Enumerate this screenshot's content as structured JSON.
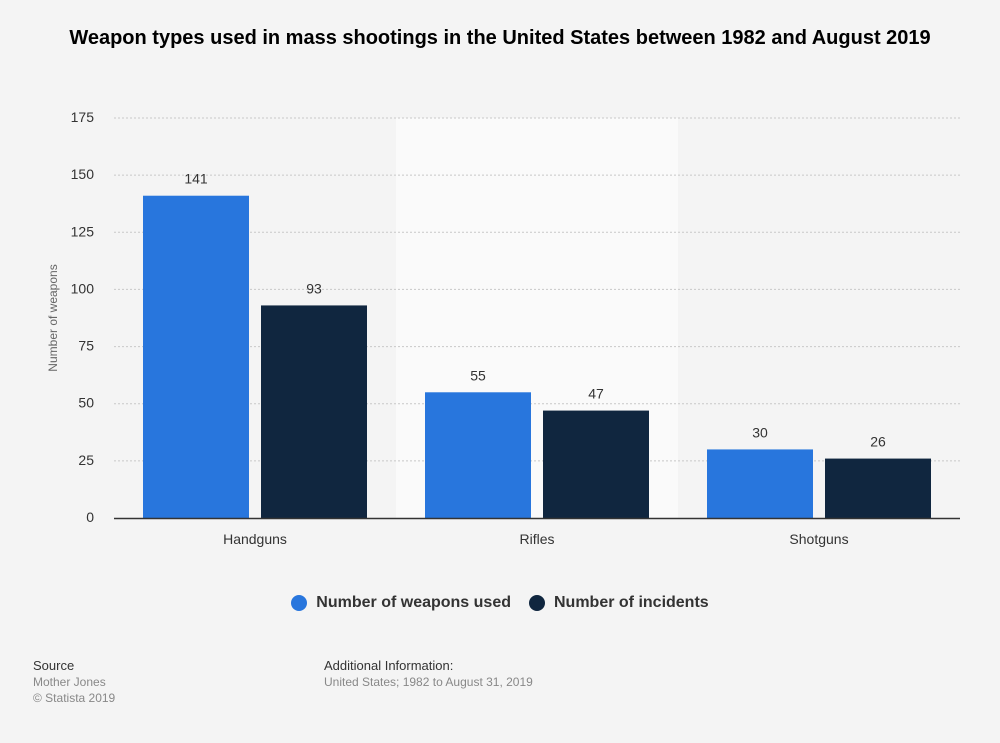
{
  "colors": {
    "series1": "#2876dd",
    "series2": "#10263f",
    "grid": "#c8c8c8",
    "axis": "#333333",
    "highlight_band": "#fafafa"
  },
  "chart_data": {
    "type": "bar",
    "title": "Weapon types used in mass shootings in the United States between 1982 and August 2019",
    "xlabel": "",
    "ylabel": "Number of weapons",
    "categories": [
      "Handguns",
      "Rifles",
      "Shotguns"
    ],
    "series": [
      {
        "name": "Number of weapons used",
        "values": [
          141,
          55,
          30
        ],
        "color": "#2876dd"
      },
      {
        "name": "Number of incidents",
        "values": [
          93,
          47,
          26
        ],
        "color": "#10263f"
      }
    ],
    "ylim": [
      0,
      175
    ],
    "yticks": [
      "0",
      "25",
      "50",
      "75",
      "100",
      "125",
      "150",
      "175"
    ],
    "grid": true,
    "legend_position": "bottom",
    "highlighted_category": "Rifles"
  },
  "footer": {
    "source_heading": "Source",
    "source_lines": [
      "Mother Jones",
      "© Statista 2019"
    ],
    "info_heading": "Additional Information:",
    "info_text": "United States; 1982 to August 31, 2019"
  }
}
